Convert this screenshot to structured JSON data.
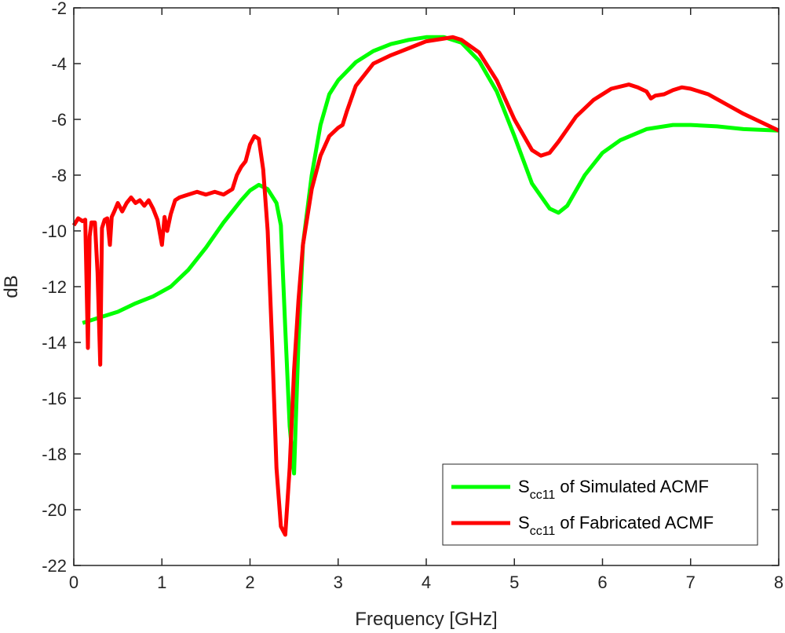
{
  "chart_data": {
    "type": "line",
    "title": "",
    "xlabel": "Frequency [GHz]",
    "ylabel": "dB",
    "xlim": [
      0,
      8
    ],
    "ylim": [
      -22,
      -2
    ],
    "xticks": [
      0,
      1,
      2,
      3,
      4,
      5,
      6,
      7,
      8
    ],
    "yticks": [
      -22,
      -20,
      -18,
      -16,
      -14,
      -12,
      -10,
      -8,
      -6,
      -4,
      -2
    ],
    "grid": false,
    "legend_position": "bottom-right",
    "series": [
      {
        "name": "Scc11 of Simulated ACMF",
        "legend_main": "S",
        "legend_sub": "cc11",
        "legend_rest": " of Simulated ACMF",
        "color": "#00ff00",
        "x": [
          0.1,
          0.3,
          0.5,
          0.7,
          0.9,
          1.1,
          1.3,
          1.5,
          1.7,
          1.9,
          2.0,
          2.1,
          2.2,
          2.3,
          2.35,
          2.4,
          2.45,
          2.5,
          2.55,
          2.6,
          2.7,
          2.8,
          2.9,
          3.0,
          3.2,
          3.4,
          3.6,
          3.8,
          4.0,
          4.2,
          4.4,
          4.6,
          4.8,
          5.0,
          5.2,
          5.4,
          5.5,
          5.6,
          5.8,
          6.0,
          6.2,
          6.5,
          6.8,
          7.0,
          7.3,
          7.6,
          8.0
        ],
        "y": [
          -13.3,
          -13.1,
          -12.9,
          -12.6,
          -12.35,
          -12.0,
          -11.4,
          -10.6,
          -9.7,
          -8.9,
          -8.55,
          -8.35,
          -8.5,
          -9.0,
          -9.8,
          -13.5,
          -17.0,
          -18.7,
          -14.0,
          -10.5,
          -8.0,
          -6.2,
          -5.1,
          -4.6,
          -3.95,
          -3.55,
          -3.3,
          -3.15,
          -3.05,
          -3.05,
          -3.25,
          -3.9,
          -5.0,
          -6.6,
          -8.3,
          -9.2,
          -9.35,
          -9.1,
          -8.0,
          -7.2,
          -6.75,
          -6.35,
          -6.2,
          -6.2,
          -6.25,
          -6.35,
          -6.4
        ]
      },
      {
        "name": "Scc11 of Fabricated ACMF",
        "legend_main": "S",
        "legend_sub": "cc11",
        "legend_rest": " of Fabricated ACMF",
        "color": "#ff0000",
        "x": [
          0.0,
          0.05,
          0.1,
          0.13,
          0.16,
          0.18,
          0.2,
          0.24,
          0.27,
          0.3,
          0.32,
          0.35,
          0.38,
          0.41,
          0.43,
          0.46,
          0.5,
          0.55,
          0.6,
          0.65,
          0.7,
          0.75,
          0.8,
          0.85,
          0.9,
          0.95,
          1.0,
          1.03,
          1.06,
          1.1,
          1.15,
          1.2,
          1.3,
          1.4,
          1.5,
          1.6,
          1.7,
          1.8,
          1.85,
          1.9,
          1.95,
          2.0,
          2.05,
          2.1,
          2.15,
          2.2,
          2.25,
          2.3,
          2.35,
          2.4,
          2.45,
          2.5,
          2.55,
          2.6,
          2.7,
          2.8,
          2.9,
          3.0,
          3.05,
          3.1,
          3.2,
          3.4,
          3.6,
          3.8,
          4.0,
          4.2,
          4.3,
          4.4,
          4.6,
          4.8,
          5.0,
          5.2,
          5.3,
          5.4,
          5.5,
          5.7,
          5.9,
          6.1,
          6.3,
          6.4,
          6.5,
          6.55,
          6.6,
          6.7,
          6.8,
          6.9,
          7.0,
          7.2,
          7.4,
          7.6,
          7.8,
          8.0
        ],
        "y": [
          -9.8,
          -9.55,
          -9.65,
          -9.6,
          -14.2,
          -10.2,
          -9.7,
          -9.7,
          -11.5,
          -14.8,
          -9.9,
          -9.6,
          -9.55,
          -10.5,
          -9.5,
          -9.3,
          -9.0,
          -9.3,
          -9.0,
          -8.8,
          -9.0,
          -8.9,
          -9.1,
          -8.9,
          -9.2,
          -9.6,
          -10.5,
          -9.5,
          -10.0,
          -9.4,
          -8.9,
          -8.8,
          -8.7,
          -8.6,
          -8.7,
          -8.6,
          -8.7,
          -8.5,
          -8.0,
          -7.7,
          -7.5,
          -6.9,
          -6.6,
          -6.7,
          -7.8,
          -10.0,
          -14.0,
          -18.5,
          -20.6,
          -20.9,
          -18.5,
          -15.0,
          -12.5,
          -10.5,
          -8.5,
          -7.3,
          -6.6,
          -6.3,
          -6.2,
          -5.7,
          -4.8,
          -4.0,
          -3.7,
          -3.45,
          -3.2,
          -3.1,
          -3.05,
          -3.15,
          -3.6,
          -4.6,
          -6.0,
          -7.1,
          -7.3,
          -7.2,
          -6.8,
          -5.9,
          -5.3,
          -4.9,
          -4.75,
          -4.85,
          -5.0,
          -5.25,
          -5.15,
          -5.1,
          -4.95,
          -4.85,
          -4.9,
          -5.1,
          -5.45,
          -5.8,
          -6.1,
          -6.4
        ]
      }
    ]
  }
}
